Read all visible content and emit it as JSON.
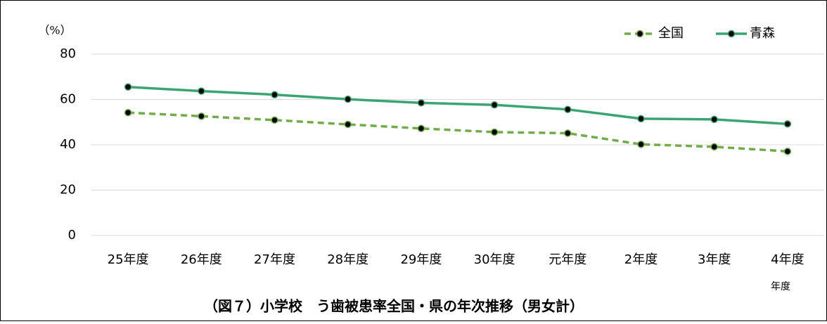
{
  "chart_data": {
    "type": "line",
    "title": "（図７）小学校　う歯被患率全国・県の年次推移（男女計）",
    "y_label": "（%）",
    "x_label": "年度",
    "categories": [
      "25年度",
      "26年度",
      "27年度",
      "28年度",
      "29年度",
      "30年度",
      "元年度",
      "2年度",
      "3年度",
      "4年度"
    ],
    "series": [
      {
        "name": "全国",
        "color": "#70ad47",
        "dashed": true,
        "values": [
          54.2,
          52.6,
          50.9,
          49.0,
          47.2,
          45.6,
          45.1,
          40.2,
          39.1,
          37.1
        ]
      },
      {
        "name": "青森",
        "color": "#3ba474",
        "dashed": false,
        "values": [
          65.5,
          63.7,
          62.1,
          60.1,
          58.5,
          57.6,
          55.6,
          51.5,
          51.2,
          49.2
        ]
      }
    ],
    "ylim": [
      0,
      80
    ],
    "yticks": [
      0,
      20,
      40,
      60,
      80
    ],
    "grid": true,
    "legend": "top-right"
  }
}
